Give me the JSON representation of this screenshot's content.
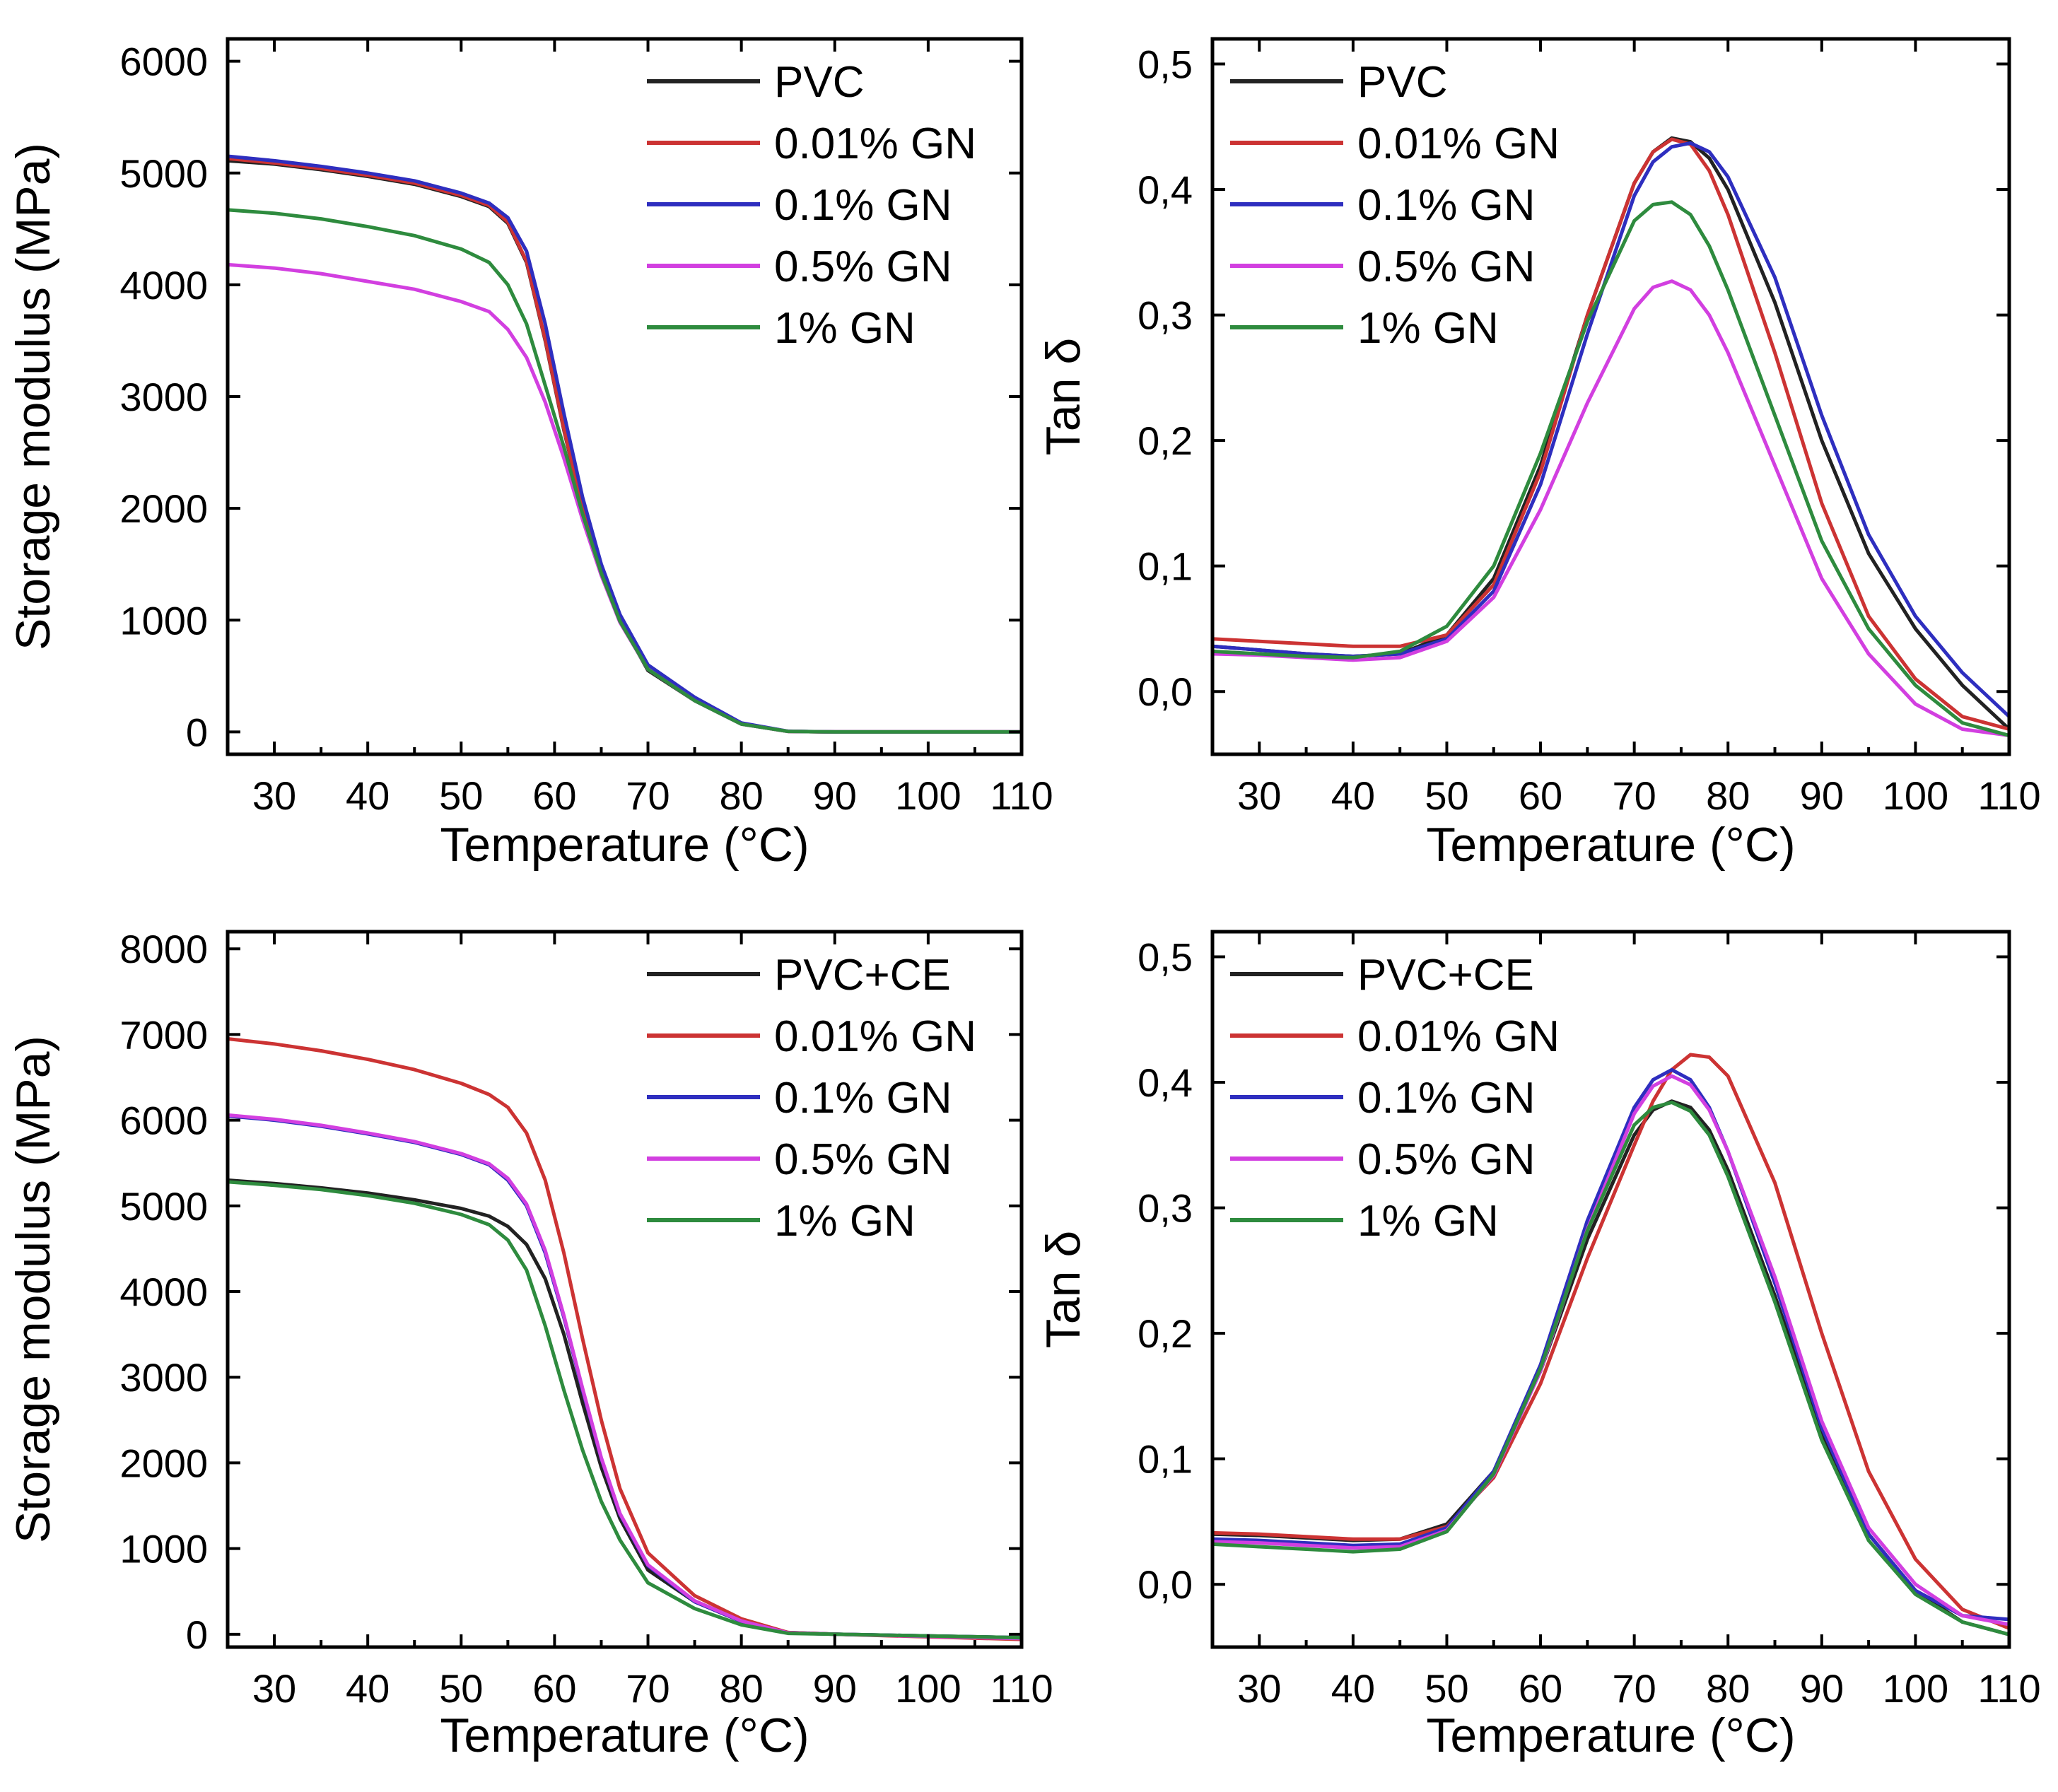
{
  "colors": {
    "PVC": "#222222",
    "GN001": "#cc3333",
    "GN01": "#2e2ebf",
    "GN05": "#d23fe0",
    "GN1": "#2e8b3e"
  },
  "chart_data": [
    {
      "type": "line",
      "panel": "top-left",
      "xlabel": "Temperature (°C)",
      "ylabel": "Storage modulus (MPa)",
      "xlim": [
        25,
        110
      ],
      "ylim": [
        -200,
        6200
      ],
      "xticks": [
        30,
        40,
        50,
        60,
        70,
        80,
        90,
        100,
        110
      ],
      "yticks": [
        0,
        1000,
        2000,
        3000,
        4000,
        5000,
        6000
      ],
      "ytick_labels": [
        "0",
        "1000",
        "2000",
        "3000",
        "4000",
        "5000",
        "6000"
      ],
      "legend_position": "top-right",
      "x": [
        25,
        30,
        35,
        40,
        45,
        50,
        53,
        55,
        57,
        59,
        61,
        63,
        65,
        67,
        70,
        75,
        80,
        85,
        90,
        100,
        110
      ],
      "series": [
        {
          "name": "PVC",
          "color_key": "PVC",
          "values": [
            5110,
            5080,
            5030,
            4970,
            4900,
            4790,
            4700,
            4550,
            4200,
            3500,
            2700,
            2000,
            1450,
            1000,
            550,
            280,
            70,
            5,
            0,
            0,
            0
          ]
        },
        {
          "name": "0.01% GN",
          "color_key": "GN001",
          "values": [
            5130,
            5090,
            5040,
            4980,
            4910,
            4800,
            4710,
            4560,
            4210,
            3510,
            2710,
            2010,
            1460,
            1010,
            560,
            285,
            72,
            5,
            0,
            0,
            0
          ]
        },
        {
          "name": "0.1% GN",
          "color_key": "GN01",
          "values": [
            5150,
            5110,
            5060,
            5000,
            4930,
            4820,
            4730,
            4600,
            4300,
            3650,
            2850,
            2100,
            1500,
            1050,
            600,
            310,
            80,
            6,
            0,
            0,
            0
          ]
        },
        {
          "name": "0.5% GN",
          "color_key": "GN05",
          "values": [
            4180,
            4150,
            4100,
            4030,
            3960,
            3850,
            3760,
            3600,
            3350,
            2950,
            2450,
            1900,
            1400,
            980,
            560,
            280,
            70,
            5,
            0,
            0,
            0
          ]
        },
        {
          "name": "1% GN",
          "color_key": "GN1",
          "values": [
            4670,
            4640,
            4590,
            4520,
            4440,
            4320,
            4200,
            4000,
            3650,
            3100,
            2550,
            1950,
            1420,
            990,
            560,
            280,
            70,
            5,
            0,
            0,
            0
          ]
        }
      ]
    },
    {
      "type": "line",
      "panel": "top-right",
      "xlabel": "Temperature (°C)",
      "ylabel": "Tan δ",
      "xlim": [
        25,
        110
      ],
      "ylim": [
        -0.05,
        0.52
      ],
      "xticks": [
        30,
        40,
        50,
        60,
        70,
        80,
        90,
        100,
        110
      ],
      "yticks": [
        0.0,
        0.1,
        0.2,
        0.3,
        0.4,
        0.5
      ],
      "ytick_labels": [
        "0,0",
        "0,1",
        "0,2",
        "0,3",
        "0,4",
        "0,5"
      ],
      "legend_position": "top-left",
      "x": [
        25,
        30,
        35,
        40,
        45,
        50,
        55,
        60,
        65,
        70,
        72,
        74,
        76,
        78,
        80,
        85,
        90,
        95,
        100,
        105,
        110
      ],
      "series": [
        {
          "name": "PVC",
          "color_key": "PVC",
          "values": [
            0.036,
            0.033,
            0.03,
            0.028,
            0.03,
            0.045,
            0.09,
            0.18,
            0.3,
            0.405,
            0.43,
            0.441,
            0.438,
            0.425,
            0.4,
            0.31,
            0.2,
            0.11,
            0.05,
            0.005,
            -0.03
          ]
        },
        {
          "name": "0.01% GN",
          "color_key": "GN001",
          "values": [
            0.042,
            0.04,
            0.038,
            0.036,
            0.036,
            0.045,
            0.085,
            0.175,
            0.3,
            0.405,
            0.43,
            0.44,
            0.436,
            0.415,
            0.38,
            0.27,
            0.15,
            0.06,
            0.01,
            -0.02,
            -0.03
          ]
        },
        {
          "name": "0.1% GN",
          "color_key": "GN01",
          "values": [
            0.036,
            0.033,
            0.03,
            0.028,
            0.03,
            0.042,
            0.08,
            0.165,
            0.285,
            0.395,
            0.422,
            0.434,
            0.437,
            0.43,
            0.41,
            0.33,
            0.22,
            0.125,
            0.06,
            0.015,
            -0.02
          ]
        },
        {
          "name": "0.5% GN",
          "color_key": "GN05",
          "values": [
            0.03,
            0.029,
            0.027,
            0.025,
            0.027,
            0.04,
            0.075,
            0.145,
            0.23,
            0.305,
            0.322,
            0.327,
            0.32,
            0.3,
            0.27,
            0.18,
            0.09,
            0.03,
            -0.01,
            -0.03,
            -0.035
          ]
        },
        {
          "name": "1% GN",
          "color_key": "GN1",
          "values": [
            0.032,
            0.03,
            0.028,
            0.027,
            0.032,
            0.052,
            0.1,
            0.19,
            0.295,
            0.375,
            0.388,
            0.39,
            0.38,
            0.355,
            0.32,
            0.22,
            0.12,
            0.05,
            0.005,
            -0.025,
            -0.035
          ]
        }
      ]
    },
    {
      "type": "line",
      "panel": "bottom-left",
      "xlabel": "Temperature (°C)",
      "ylabel": "Storage modulus (MPa)",
      "xlim": [
        25,
        110
      ],
      "ylim": [
        -150,
        8200
      ],
      "xticks": [
        30,
        40,
        50,
        60,
        70,
        80,
        90,
        100,
        110
      ],
      "yticks": [
        0,
        1000,
        2000,
        3000,
        4000,
        5000,
        6000,
        7000,
        8000
      ],
      "ytick_labels": [
        "0",
        "1000",
        "2000",
        "3000",
        "4000",
        "5000",
        "6000",
        "7000",
        "8000"
      ],
      "legend_position": "top-right",
      "x": [
        25,
        30,
        35,
        40,
        45,
        50,
        53,
        55,
        57,
        59,
        61,
        63,
        65,
        67,
        70,
        75,
        80,
        85,
        90,
        100,
        110
      ],
      "series": [
        {
          "name": "PVC+CE",
          "color_key": "PVC",
          "values": [
            5300,
            5260,
            5210,
            5150,
            5070,
            4970,
            4880,
            4760,
            4550,
            4150,
            3500,
            2700,
            1950,
            1350,
            750,
            380,
            150,
            20,
            0,
            -20,
            -40
          ]
        },
        {
          "name": "0.01% GN",
          "color_key": "GN001",
          "values": [
            6950,
            6890,
            6810,
            6710,
            6590,
            6430,
            6300,
            6150,
            5850,
            5300,
            4450,
            3450,
            2500,
            1700,
            950,
            450,
            180,
            20,
            0,
            -30,
            -60
          ]
        },
        {
          "name": "0.1% GN",
          "color_key": "GN01",
          "values": [
            6050,
            6000,
            5930,
            5840,
            5740,
            5600,
            5480,
            5300,
            5000,
            4450,
            3700,
            2850,
            2050,
            1400,
            800,
            380,
            150,
            15,
            0,
            -20,
            -40
          ]
        },
        {
          "name": "0.5% GN",
          "color_key": "GN05",
          "values": [
            6060,
            6010,
            5940,
            5850,
            5750,
            5610,
            5490,
            5320,
            5020,
            4480,
            3720,
            2870,
            2060,
            1410,
            810,
            390,
            155,
            15,
            0,
            -25,
            -50
          ]
        },
        {
          "name": "1% GN",
          "color_key": "GN1",
          "values": [
            5280,
            5240,
            5190,
            5120,
            5030,
            4900,
            4780,
            4600,
            4250,
            3600,
            2850,
            2150,
            1550,
            1100,
            600,
            300,
            110,
            10,
            0,
            -20,
            -40
          ]
        }
      ]
    },
    {
      "type": "line",
      "panel": "bottom-right",
      "xlabel": "Temperature (°C)",
      "ylabel": "Tan δ",
      "xlim": [
        25,
        110
      ],
      "ylim": [
        -0.05,
        0.52
      ],
      "xticks": [
        30,
        40,
        50,
        60,
        70,
        80,
        90,
        100,
        110
      ],
      "yticks": [
        0.0,
        0.1,
        0.2,
        0.3,
        0.4,
        0.5
      ],
      "ytick_labels": [
        "0,0",
        "0,1",
        "0,2",
        "0,3",
        "0,4",
        "0,5"
      ],
      "legend_position": "top-left",
      "x": [
        25,
        30,
        35,
        40,
        45,
        50,
        55,
        60,
        65,
        70,
        72,
        74,
        76,
        78,
        80,
        85,
        90,
        95,
        100,
        105,
        110
      ],
      "series": [
        {
          "name": "PVC+CE",
          "color_key": "PVC",
          "values": [
            0.04,
            0.039,
            0.037,
            0.035,
            0.036,
            0.048,
            0.09,
            0.17,
            0.275,
            0.358,
            0.378,
            0.385,
            0.38,
            0.362,
            0.33,
            0.23,
            0.12,
            0.04,
            -0.005,
            -0.03,
            -0.04
          ]
        },
        {
          "name": "0.01% GN",
          "color_key": "GN001",
          "values": [
            0.041,
            0.04,
            0.038,
            0.036,
            0.036,
            0.046,
            0.085,
            0.16,
            0.26,
            0.35,
            0.385,
            0.41,
            0.422,
            0.42,
            0.405,
            0.32,
            0.2,
            0.09,
            0.02,
            -0.02,
            -0.035
          ]
        },
        {
          "name": "0.1% GN",
          "color_key": "GN01",
          "values": [
            0.036,
            0.035,
            0.033,
            0.031,
            0.032,
            0.045,
            0.09,
            0.175,
            0.29,
            0.38,
            0.402,
            0.41,
            0.402,
            0.38,
            0.345,
            0.24,
            0.125,
            0.04,
            -0.005,
            -0.025,
            -0.028
          ]
        },
        {
          "name": "0.5% GN",
          "color_key": "GN05",
          "values": [
            0.034,
            0.033,
            0.031,
            0.029,
            0.03,
            0.043,
            0.087,
            0.17,
            0.283,
            0.375,
            0.397,
            0.405,
            0.398,
            0.378,
            0.345,
            0.245,
            0.13,
            0.045,
            0.0,
            -0.025,
            -0.032
          ]
        },
        {
          "name": "1% GN",
          "color_key": "GN1",
          "values": [
            0.032,
            0.03,
            0.028,
            0.026,
            0.028,
            0.042,
            0.088,
            0.172,
            0.282,
            0.366,
            0.38,
            0.384,
            0.377,
            0.358,
            0.325,
            0.225,
            0.115,
            0.035,
            -0.008,
            -0.03,
            -0.04
          ]
        }
      ]
    }
  ]
}
